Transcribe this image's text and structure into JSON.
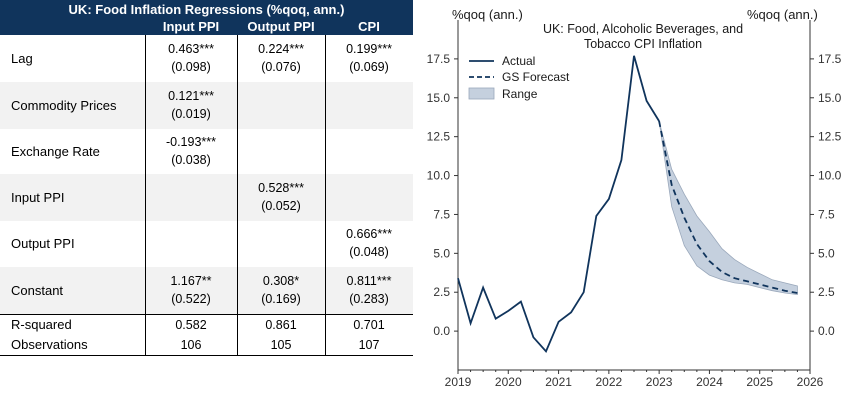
{
  "table": {
    "title": "UK: Food Inflation Regressions (%qoq, ann.)",
    "columns": [
      "Input PPI",
      "Output PPI",
      "CPI"
    ],
    "rows": [
      {
        "label": "Lag",
        "cells": [
          [
            "0.463***",
            "(0.098)"
          ],
          [
            "0.224***",
            "(0.076)"
          ],
          [
            "0.199***",
            "(0.069)"
          ]
        ]
      },
      {
        "label": "Commodity Prices",
        "cells": [
          [
            "0.121***",
            "(0.019)"
          ],
          [
            "",
            ""
          ],
          [
            "",
            ""
          ]
        ]
      },
      {
        "label": "Exchange Rate",
        "cells": [
          [
            "-0.193***",
            "(0.038)"
          ],
          [
            "",
            ""
          ],
          [
            "",
            ""
          ]
        ]
      },
      {
        "label": "Input PPI",
        "cells": [
          [
            "",
            ""
          ],
          [
            "0.528***",
            "(0.052)"
          ],
          [
            "",
            ""
          ]
        ]
      },
      {
        "label": "Output PPI",
        "cells": [
          [
            "",
            ""
          ],
          [
            "",
            ""
          ],
          [
            "0.666***",
            "(0.048)"
          ]
        ]
      },
      {
        "label": "Constant",
        "cells": [
          [
            "1.167**",
            "(0.522)"
          ],
          [
            "0.308*",
            "(0.169)"
          ],
          [
            "0.811***",
            "(0.283)"
          ]
        ]
      }
    ],
    "stats": [
      {
        "label": "R-squared",
        "values": [
          "0.582",
          "0.861",
          "0.701"
        ]
      },
      {
        "label": "Observations",
        "values": [
          "106",
          "105",
          "107"
        ]
      }
    ]
  },
  "chart_data": {
    "type": "line",
    "title": "UK: Food, Alcoholic Beverages, and Tobacco CPI Inflation",
    "ylabel_left": "%qoq (ann.)",
    "ylabel_right": "%qoq (ann.)",
    "xlim": [
      2019,
      2026
    ],
    "ylim": [
      -2.5,
      20.0
    ],
    "y_ticks": [
      0,
      2.5,
      5,
      7.5,
      10,
      12.5,
      15,
      17.5
    ],
    "y_tick_labels": [
      "0.0",
      "2.5",
      "5.0",
      "7.5",
      "10.0",
      "12.5",
      "15.0",
      "17.5"
    ],
    "x_ticks": [
      2019,
      2020,
      2021,
      2022,
      2023,
      2024,
      2025,
      2026
    ],
    "x_tick_labels": [
      "2019",
      "2020",
      "2021",
      "2022",
      "2023",
      "2024",
      "2025",
      "2026"
    ],
    "legend": [
      "Actual",
      "GS Forecast",
      "Range"
    ],
    "colors": {
      "actual": "#10345c",
      "forecast": "#10345c",
      "range": "#c5d0de",
      "range_edge": "#9aa8bb"
    },
    "series": [
      {
        "name": "Actual",
        "style": "solid",
        "x": [
          2019.0,
          2019.25,
          2019.5,
          2019.75,
          2020.0,
          2020.25,
          2020.5,
          2020.75,
          2021.0,
          2021.25,
          2021.5,
          2021.75,
          2022.0,
          2022.25,
          2022.5,
          2022.75,
          2023.0
        ],
        "y": [
          3.4,
          0.5,
          2.8,
          0.8,
          1.3,
          1.9,
          -0.4,
          -1.3,
          0.6,
          1.2,
          2.5,
          7.4,
          8.5,
          11.0,
          17.7,
          14.8,
          13.5
        ]
      },
      {
        "name": "GS Forecast",
        "style": "dashed",
        "x": [
          2023.0,
          2023.25,
          2023.5,
          2023.75,
          2024.0,
          2024.25,
          2024.5,
          2024.75,
          2025.0,
          2025.25,
          2025.5,
          2025.75
        ],
        "y": [
          13.5,
          9.4,
          7.3,
          5.6,
          4.5,
          3.8,
          3.4,
          3.2,
          3.0,
          2.8,
          2.6,
          2.45
        ]
      },
      {
        "name": "Range",
        "style": "band",
        "x": [
          2023.0,
          2023.25,
          2023.5,
          2023.75,
          2024.0,
          2024.25,
          2024.5,
          2024.75,
          2025.0,
          2025.25,
          2025.5,
          2025.75
        ],
        "low": [
          13.5,
          8.0,
          5.5,
          4.2,
          3.6,
          3.3,
          3.1,
          3.0,
          2.8,
          2.6,
          2.45,
          2.35
        ],
        "high": [
          13.5,
          10.4,
          8.8,
          7.4,
          6.4,
          5.3,
          4.6,
          4.1,
          3.7,
          3.3,
          3.1,
          2.9
        ]
      }
    ]
  }
}
